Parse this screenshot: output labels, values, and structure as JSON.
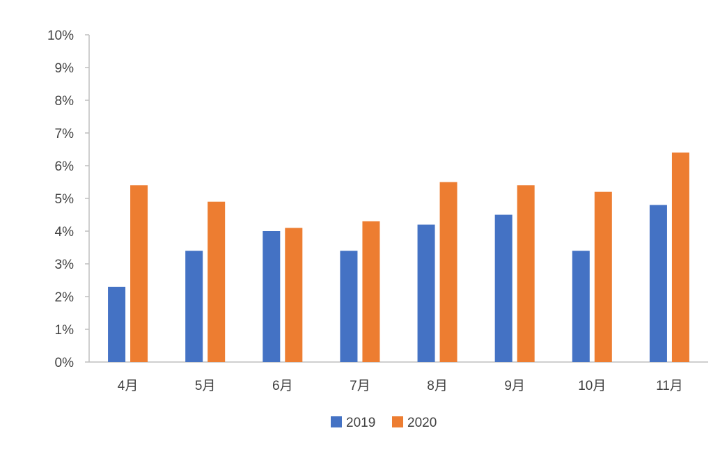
{
  "chart_data": {
    "type": "bar",
    "title": "",
    "xlabel": "",
    "ylabel": "",
    "categories": [
      "4月",
      "5月",
      "6月",
      "7月",
      "8月",
      "9月",
      "10月",
      "11月"
    ],
    "series": [
      {
        "name": "2019",
        "color": "#4472C4",
        "values": [
          2.3,
          3.4,
          4.0,
          3.4,
          4.2,
          4.5,
          3.4,
          4.8
        ]
      },
      {
        "name": "2020",
        "color": "#ED7D31",
        "values": [
          5.4,
          4.9,
          4.1,
          4.3,
          5.5,
          5.4,
          5.2,
          6.4
        ]
      }
    ],
    "ylim": [
      0,
      10
    ],
    "yticks": [
      "0%",
      "1%",
      "2%",
      "3%",
      "4%",
      "5%",
      "6%",
      "7%",
      "8%",
      "9%",
      "10%"
    ],
    "grid": false,
    "legend": "bottom"
  }
}
